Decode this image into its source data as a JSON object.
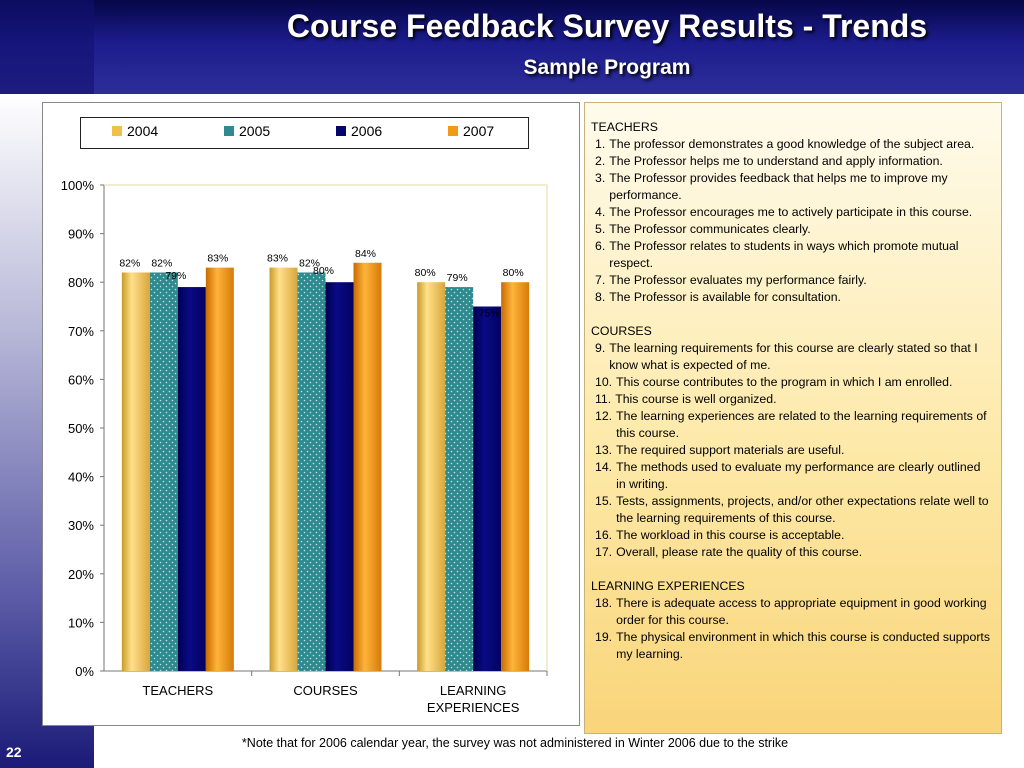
{
  "slide": {
    "title": "Course Feedback Survey Results - Trends",
    "subtitle": "Sample Program",
    "footnote": "*Note that for 2006 calendar year, the survey was not administered in Winter 2006 due to the strike",
    "number": "22"
  },
  "colors": {
    "2004": "#f0c048",
    "2005": "#2e8a8e",
    "2006": "#05056e",
    "2007": "#f09a18",
    "header": "#1c1c8c"
  },
  "chart_data": {
    "type": "bar",
    "categories": [
      "TEACHERS",
      "COURSES",
      "LEARNING EXPERIENCES"
    ],
    "category_lines": [
      [
        "TEACHERS"
      ],
      [
        "COURSES"
      ],
      [
        "LEARNING",
        "EXPERIENCES"
      ]
    ],
    "series": [
      {
        "name": "2004",
        "values": [
          82,
          83,
          80
        ],
        "labels": [
          "82%",
          "83%",
          "80%"
        ]
      },
      {
        "name": "2005",
        "values": [
          82,
          82,
          79
        ],
        "labels": [
          "82%",
          "82%",
          "79%"
        ]
      },
      {
        "name": "2006",
        "values": [
          79,
          80,
          75
        ],
        "labels": [
          "79%",
          "80%",
          "75%"
        ]
      },
      {
        "name": "2007",
        "values": [
          83,
          84,
          80
        ],
        "labels": [
          "83%",
          "84%",
          "80%"
        ]
      }
    ],
    "ylim": [
      0,
      100
    ],
    "yticks": [
      "0%",
      "10%",
      "20%",
      "30%",
      "40%",
      "50%",
      "60%",
      "70%",
      "80%",
      "90%",
      "100%"
    ],
    "legend_position": "top",
    "grid": false
  },
  "panel": {
    "sections": [
      {
        "heading": "TEACHERS",
        "items": [
          {
            "num": "1.",
            "text": "The professor demonstrates a good knowledge of the subject area."
          },
          {
            "num": "2.",
            "text": "The Professor helps me to understand and apply information."
          },
          {
            "num": "3.",
            "text": "The Professor provides feedback that helps me to improve my performance."
          },
          {
            "num": "4.",
            "text": "The Professor encourages me to actively participate in this course."
          },
          {
            "num": "5.",
            "text": "The Professor communicates clearly."
          },
          {
            "num": "6.",
            "text": "The Professor relates to students in ways which promote mutual respect."
          },
          {
            "num": "7.",
            "text": "The Professor evaluates my performance fairly."
          },
          {
            "num": "8.",
            "text": "The Professor is available for consultation."
          }
        ]
      },
      {
        "heading": "COURSES",
        "items": [
          {
            "num": "9.",
            "text": "The learning requirements for this course are clearly stated so that I know what is expected of me."
          },
          {
            "num": "10.",
            "text": "This course contributes to the program in which I am enrolled."
          },
          {
            "num": "11.",
            "text": "This course is well organized."
          },
          {
            "num": "12.",
            "text": "The learning experiences are related to the learning requirements of this course."
          },
          {
            "num": "13.",
            "text": "The required support materials are useful."
          },
          {
            "num": "14.",
            "text": "The methods used to evaluate my performance are clearly outlined in writing."
          },
          {
            "num": "15.",
            "text": "Tests, assignments, projects, and/or other expectations relate well to the learning requirements of this course."
          },
          {
            "num": "16.",
            "text": "The workload in this course is acceptable."
          },
          {
            "num": "17.",
            "text": "Overall, please rate the quality of this course."
          }
        ]
      },
      {
        "heading": "LEARNING EXPERIENCES",
        "items": [
          {
            "num": "18.",
            "text": "There is adequate access to appropriate equipment in good working order for this course."
          },
          {
            "num": "19.",
            "text": "The physical environment in which this course is conducted supports my learning."
          }
        ]
      }
    ]
  }
}
